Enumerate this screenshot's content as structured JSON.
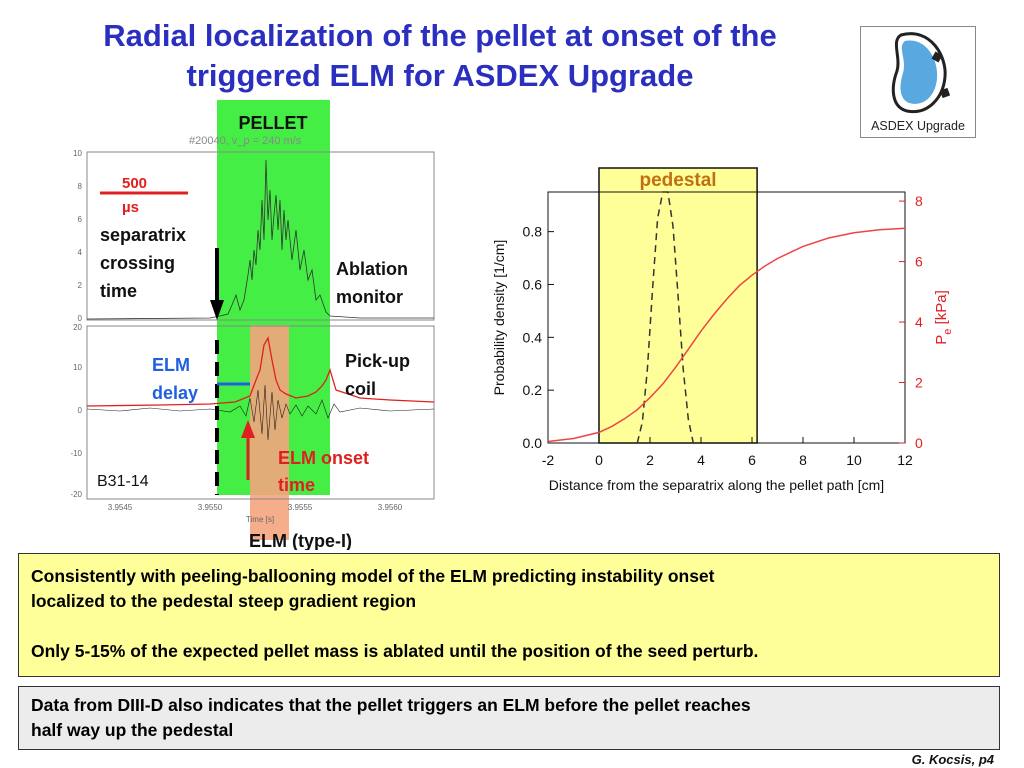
{
  "slide": {
    "title_line1": "Radial localization of the pellet at onset of the",
    "title_line2": "triggered ELM for ASDEX Upgrade",
    "logo_text": "ASDEX Upgrade",
    "footer": "G. Kocsis, p4"
  },
  "left_figure": {
    "pellet_label": "PELLET",
    "shot_label": "#20040, v_p = 240 m/s",
    "scale_value": "500",
    "scale_unit": "µs",
    "separatrix_label_1": "separatrix",
    "separatrix_label_2": "crossing",
    "separatrix_label_3": "time",
    "ablation_label_1": "Ablation",
    "ablation_label_2": "monitor",
    "pickup_label_1": "Pick-up",
    "pickup_label_2": "coil",
    "elm_delay_label_1": "ELM",
    "elm_delay_label_2": "delay",
    "elm_onset_label_1": "ELM onset",
    "elm_onset_label_2": "time",
    "elm_type_label": "ELM (type-I)",
    "shot_id": "B31-14",
    "xlabel": "Time [s]",
    "top_panel_ticks": [
      "10",
      "8",
      "6",
      "4",
      "2",
      "0"
    ],
    "bottom_panel_ticks": [
      "20",
      "10",
      "0",
      "-10",
      "-20"
    ],
    "x_ticks": [
      "3.9545",
      "3.9550",
      "3.9555",
      "3.9560"
    ],
    "colors": {
      "pellet_band": "#44ee44",
      "elm_band": "#f4a480",
      "red": "#e02020",
      "blue": "#2060e0"
    }
  },
  "text_box_1": {
    "line1": "Consistently with peeling-ballooning model of the ELM predicting instability onset",
    "line2": "localized to the pedestal steep gradient  region",
    "line3": "Only 5-15% of the expected pellet mass is ablated until the position of the seed perturb."
  },
  "text_box_2": {
    "line1": "Data from DIII-D  also indicates that the pellet triggers an ELM before the pellet reaches",
    "line2": "half way up the pedestal"
  },
  "chart_data": {
    "type": "line",
    "title": "",
    "xlabel": "Distance from the separatrix along the pellet path [cm]",
    "ylabel": "Probability density [1/cm]",
    "y2label": "P",
    "y2label_sub": "e",
    "y2label_unit": "[kPa]",
    "xlim": [
      -2,
      12
    ],
    "ylim": [
      0,
      0.95
    ],
    "y2lim": [
      0,
      8.3
    ],
    "x_ticks": [
      -2,
      0,
      2,
      4,
      6,
      8,
      10,
      12
    ],
    "y_ticks": [
      0.0,
      0.2,
      0.4,
      0.6,
      0.8
    ],
    "y_tick_labels": [
      "0.0",
      "0.2",
      "0.4",
      "0.6",
      "0.8"
    ],
    "y2_ticks": [
      0,
      2,
      4,
      6,
      8
    ],
    "pedestal_region": {
      "label": "pedestal",
      "x_start": 0,
      "x_end": 6.2,
      "color": "#ffff99"
    },
    "series": [
      {
        "name": "",
        "axis": "left",
        "style": "dashed",
        "color": "#333333",
        "x": [
          1.5,
          1.7,
          1.9,
          2.1,
          2.3,
          2.5,
          2.7,
          2.9,
          3.1,
          3.3,
          3.5,
          3.7
        ],
        "y": [
          0.0,
          0.08,
          0.28,
          0.58,
          0.85,
          0.95,
          0.95,
          0.82,
          0.56,
          0.28,
          0.09,
          0.0
        ]
      },
      {
        "name": "",
        "axis": "right",
        "style": "solid",
        "color": "#ee4444",
        "x": [
          -2,
          -1,
          0,
          0.5,
          1,
          1.5,
          2,
          2.5,
          3,
          3.5,
          4,
          4.5,
          5,
          5.5,
          6,
          6.5,
          7,
          8,
          9,
          10,
          11,
          12
        ],
        "y": [
          0.05,
          0.15,
          0.35,
          0.55,
          0.8,
          1.1,
          1.5,
          1.95,
          2.5,
          3.1,
          3.7,
          4.25,
          4.75,
          5.2,
          5.55,
          5.85,
          6.1,
          6.5,
          6.78,
          6.95,
          7.05,
          7.1
        ]
      }
    ]
  }
}
